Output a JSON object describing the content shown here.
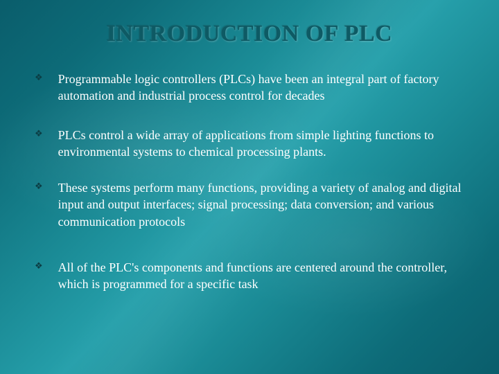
{
  "slide": {
    "title": "INTRODUCTION OF PLC",
    "title_fontsize": 34,
    "title_color": "#0e5a64",
    "background_gradient": [
      "#0a5d6b",
      "#1a8a95",
      "#26a0ab"
    ],
    "bullet_marker": "❖",
    "bullet_marker_color": "#0b3d44",
    "body_text_color": "#ffffff",
    "body_fontsize": 18,
    "line_height": 1.35,
    "bullets": [
      {
        "text": "Programmable logic controllers (PLCs) have been an integral part of factory automation and industrial process control for decades",
        "gap_after": 32
      },
      {
        "text": "PLCs control a wide array of applications from simple lighting functions to environmental systems to chemical processing plants.",
        "gap_after": 28
      },
      {
        "text": "These systems perform many functions, providing a variety of analog and digital input and output interfaces; signal processing; data conversion; and various communication protocols",
        "gap_after": 42
      },
      {
        "text": "All of the PLC's components and functions are centered around the controller, which is programmed for a specific task",
        "gap_after": 0
      }
    ]
  }
}
